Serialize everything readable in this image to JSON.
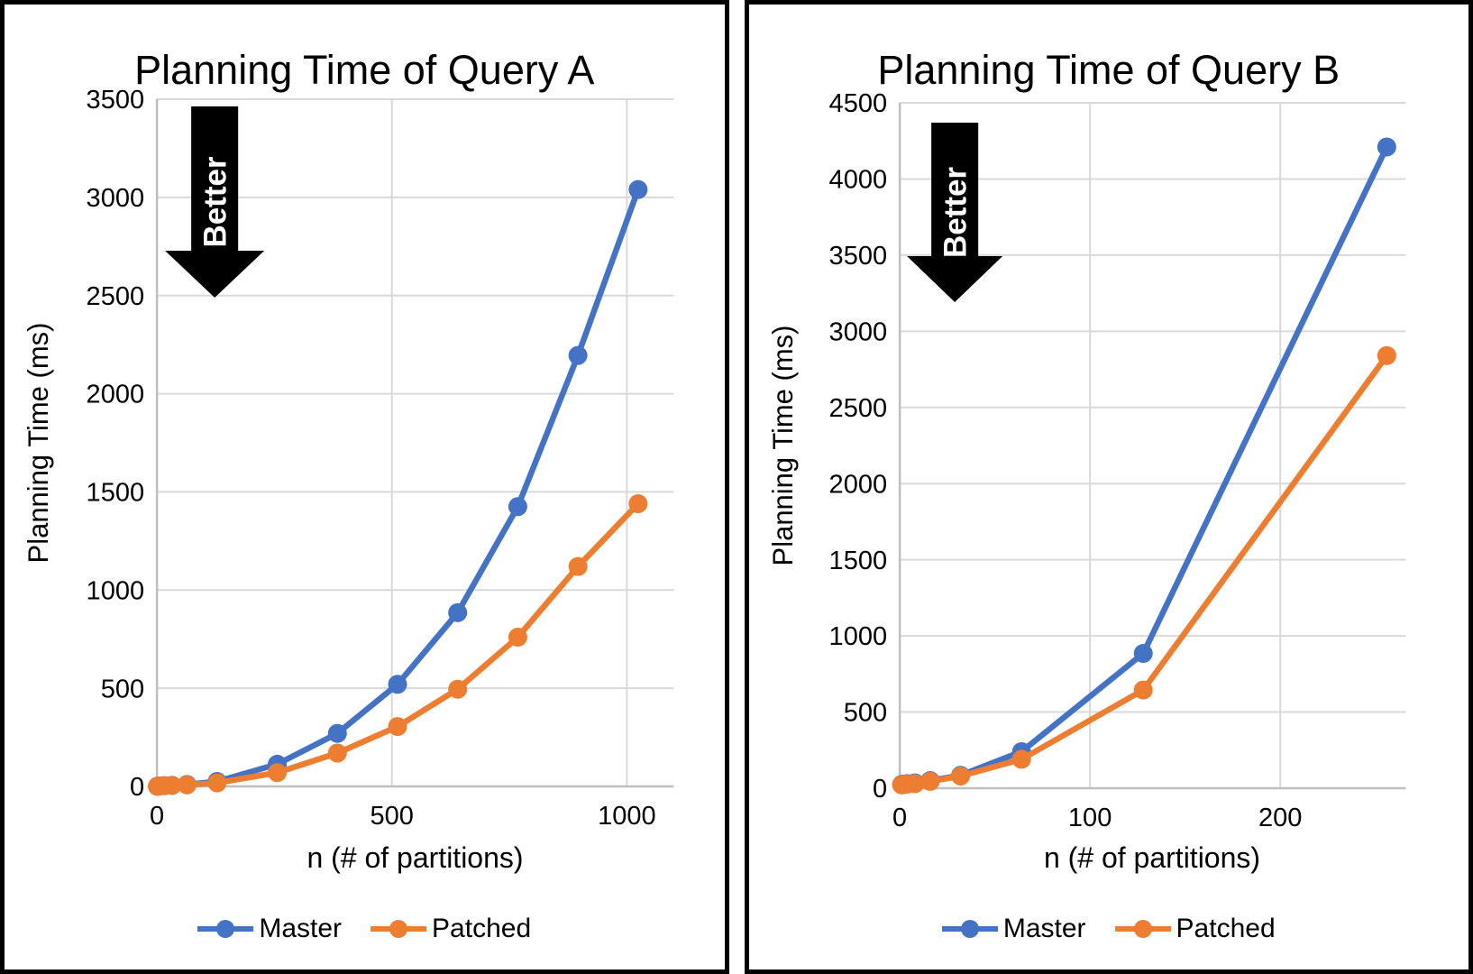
{
  "colors": {
    "background": "#FFFFFF",
    "panel_border": "#000000",
    "gridline": "#D9D9D9",
    "axis_line": "#BFBFBF",
    "text": "#000000",
    "master": "#4472C4",
    "patched": "#ED7D31"
  },
  "better_arrow": {
    "label": "Better",
    "fill": "#000000",
    "text_color": "#FFFFFF"
  },
  "legend": {
    "items": [
      {
        "label": "Master",
        "color": "#4472C4"
      },
      {
        "label": "Patched",
        "color": "#ED7D31"
      }
    ]
  },
  "chart_data": [
    {
      "type": "line",
      "title": "Planning Time of Query A",
      "xlabel": "n (# of partitions)",
      "ylabel": "Planning Time (ms)",
      "x": [
        1,
        2,
        4,
        8,
        16,
        32,
        64,
        128,
        256,
        384,
        512,
        640,
        768,
        896,
        1024
      ],
      "series": [
        {
          "name": "Master",
          "color": "#4472C4",
          "values": [
            1,
            1,
            2,
            3,
            4,
            6,
            10,
            25,
            113,
            270,
            520,
            885,
            1425,
            2195,
            3040
          ]
        },
        {
          "name": "Patched",
          "color": "#ED7D31",
          "values": [
            1,
            1,
            2,
            3,
            4,
            5,
            8,
            18,
            70,
            170,
            305,
            495,
            760,
            1120,
            1440
          ]
        }
      ],
      "xlim": [
        0,
        1100
      ],
      "ylim": [
        0,
        3500
      ],
      "xticks": [
        0,
        500,
        1000
      ],
      "ytick_step": 500,
      "grid": true,
      "legend_position": "bottom",
      "annotation": "Better"
    },
    {
      "type": "line",
      "title": "Planning Time of Query B",
      "xlabel": "n (# of partitions)",
      "ylabel": "Planning Time (ms)",
      "x": [
        1,
        2,
        4,
        8,
        16,
        32,
        64,
        128,
        256
      ],
      "series": [
        {
          "name": "Master",
          "color": "#4472C4",
          "values": [
            25,
            27,
            30,
            35,
            50,
            85,
            240,
            885,
            4210
          ]
        },
        {
          "name": "Patched",
          "color": "#ED7D31",
          "values": [
            22,
            24,
            27,
            30,
            45,
            80,
            190,
            645,
            2840
          ]
        }
      ],
      "xlim": [
        0,
        266
      ],
      "ylim": [
        0,
        4500
      ],
      "xticks": [
        0,
        100,
        200
      ],
      "ytick_step": 500,
      "grid": true,
      "legend_position": "bottom",
      "annotation": "Better"
    }
  ]
}
